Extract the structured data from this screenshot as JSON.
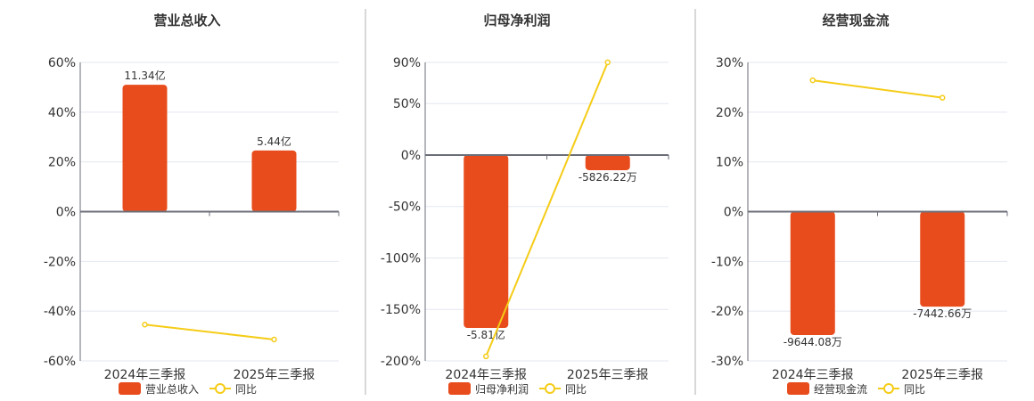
{
  "colors": {
    "bar": "#e84c1c",
    "line": "#f5cc17",
    "axis": "#6b6e78",
    "grid": "#e3e7f0",
    "divider": "#b0b0b0",
    "text": "#333333"
  },
  "chart_data": [
    {
      "type": "bar+line",
      "title": "营业总收入",
      "categories": [
        "2024年三季报",
        "2025年三季报"
      ],
      "ylim": [
        -60,
        60
      ],
      "yticks": [
        60,
        40,
        20,
        0,
        -20,
        -40,
        -60
      ],
      "ytick_labels": [
        "60%",
        "40%",
        "20%",
        "0%",
        "-20%",
        "-40%",
        "-60%"
      ],
      "bar_series": {
        "name": "营业总收入",
        "labels": [
          "11.34亿",
          "5.44亿"
        ],
        "plot_levels": [
          51,
          24.6
        ]
      },
      "line_series": {
        "name": "同比",
        "values": [
          -45.4,
          -51.4
        ]
      },
      "grid": true,
      "legend": "bottom"
    },
    {
      "type": "bar+line",
      "title": "归母净利润",
      "categories": [
        "2024年三季报",
        "2025年三季报"
      ],
      "ylim": [
        -200,
        90
      ],
      "yticks": [
        90,
        50,
        0,
        -50,
        -100,
        -150,
        -200
      ],
      "ytick_labels": [
        "90%",
        "50%",
        "0%",
        "-50%",
        "-100%",
        "-150%",
        "-200%"
      ],
      "bar_series": {
        "name": "归母净利润",
        "labels": [
          "-5.81亿",
          "-5826.22万"
        ],
        "plot_levels": [
          -168,
          -14.7
        ]
      },
      "line_series": {
        "name": "同比",
        "values": [
          -195.6,
          90
        ]
      },
      "grid": true,
      "legend": "bottom"
    },
    {
      "type": "bar+line",
      "title": "经营现金流",
      "categories": [
        "2024年三季报",
        "2025年三季报"
      ],
      "ylim": [
        -30,
        30
      ],
      "yticks": [
        30,
        20,
        10,
        0,
        -10,
        -20,
        -30
      ],
      "ytick_labels": [
        "30%",
        "20%",
        "10%",
        "0%",
        "-10%",
        "-20%",
        "-30%"
      ],
      "bar_series": {
        "name": "经营现金流",
        "labels": [
          "-9644.08万",
          "-7442.66万"
        ],
        "plot_levels": [
          -24.8,
          -19.1
        ]
      },
      "line_series": {
        "name": "同比",
        "values": [
          26.4,
          22.9
        ]
      },
      "grid": true,
      "legend": "bottom"
    }
  ]
}
